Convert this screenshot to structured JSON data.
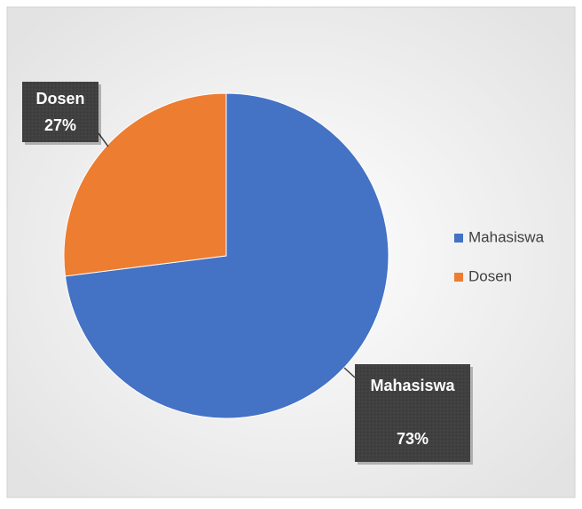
{
  "chart_data": {
    "type": "pie",
    "categories": [
      "Mahasiswa",
      "Dosen"
    ],
    "values": [
      73,
      27
    ],
    "value_labels": [
      "73%",
      "27%"
    ],
    "colors": [
      "#4472c4",
      "#ed7d31"
    ],
    "legend": "right"
  }
}
